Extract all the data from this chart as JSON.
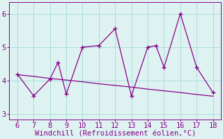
{
  "x_data": [
    6,
    7,
    8,
    8.5,
    9,
    10,
    11,
    12,
    13,
    14,
    14.5,
    15,
    16,
    17,
    18
  ],
  "y_data": [
    4.2,
    3.55,
    4.05,
    4.55,
    3.6,
    5.0,
    5.05,
    5.55,
    3.55,
    5.0,
    5.05,
    4.4,
    6.0,
    4.4,
    3.65
  ],
  "x_trend": [
    6,
    7,
    8,
    9,
    10,
    11,
    12,
    13,
    14,
    15,
    16,
    17,
    18
  ],
  "y_trend": [
    4.18,
    4.13,
    4.07,
    4.02,
    3.97,
    3.91,
    3.86,
    3.81,
    3.75,
    3.7,
    3.65,
    3.59,
    3.54
  ],
  "line_color": "#880088",
  "bg_color": "#dff2f2",
  "grid_color": "#aadddd",
  "xlabel": "Windchill (Refroidissement éolien,°C)",
  "xlim": [
    5.5,
    18.5
  ],
  "ylim": [
    2.85,
    6.35
  ],
  "xticks": [
    6,
    7,
    8,
    9,
    10,
    11,
    12,
    13,
    14,
    15,
    16,
    17,
    18
  ],
  "yticks": [
    3,
    4,
    5,
    6
  ],
  "xlabel_fontsize": 7.5,
  "tick_fontsize": 7.5
}
